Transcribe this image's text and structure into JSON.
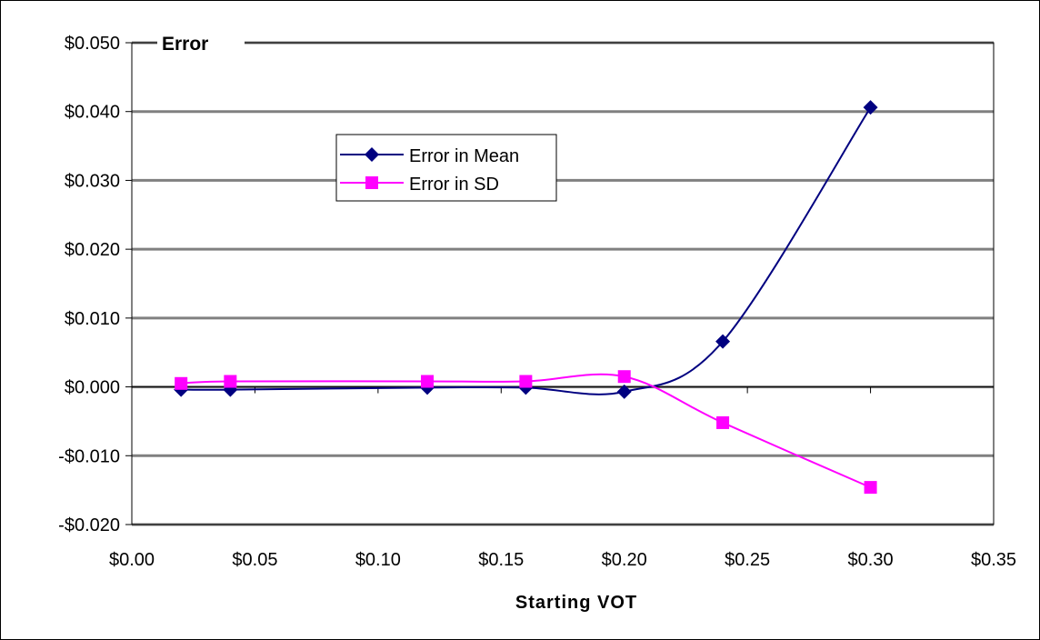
{
  "chart_data": {
    "type": "line",
    "title": "Error",
    "xlabel": "Starting VOT",
    "ylabel": "",
    "xlim": [
      0,
      0.35
    ],
    "ylim": [
      -0.02,
      0.05
    ],
    "x_ticks": [
      0.0,
      0.05,
      0.1,
      0.15,
      0.2,
      0.25,
      0.3,
      0.35
    ],
    "x_tick_labels": [
      "$0.00",
      "$0.05",
      "$0.10",
      "$0.15",
      "$0.20",
      "$0.25",
      "$0.30",
      "$0.35"
    ],
    "y_ticks": [
      -0.02,
      -0.01,
      0.0,
      0.01,
      0.02,
      0.03,
      0.04,
      0.05
    ],
    "y_tick_labels": [
      "-$0.020",
      "-$0.010",
      "$0.000",
      "$0.010",
      "$0.020",
      "$0.030",
      "$0.040",
      "$0.050"
    ],
    "grid": "horizontal",
    "legend_position": "upper-left inside plot",
    "series": [
      {
        "name": "Error in Mean",
        "color": "#000080",
        "marker": "diamond",
        "x": [
          0.02,
          0.04,
          0.12,
          0.16,
          0.2,
          0.24,
          0.3
        ],
        "y": [
          -0.0004,
          -0.0004,
          -0.0001,
          -0.0001,
          -0.0007,
          0.0066,
          0.0406
        ]
      },
      {
        "name": "Error in SD",
        "color": "#FF00FF",
        "marker": "square",
        "x": [
          0.02,
          0.04,
          0.12,
          0.16,
          0.2,
          0.24,
          0.3
        ],
        "y": [
          0.0005,
          0.0008,
          0.0008,
          0.0008,
          0.0015,
          -0.0052,
          -0.0146
        ]
      }
    ]
  }
}
